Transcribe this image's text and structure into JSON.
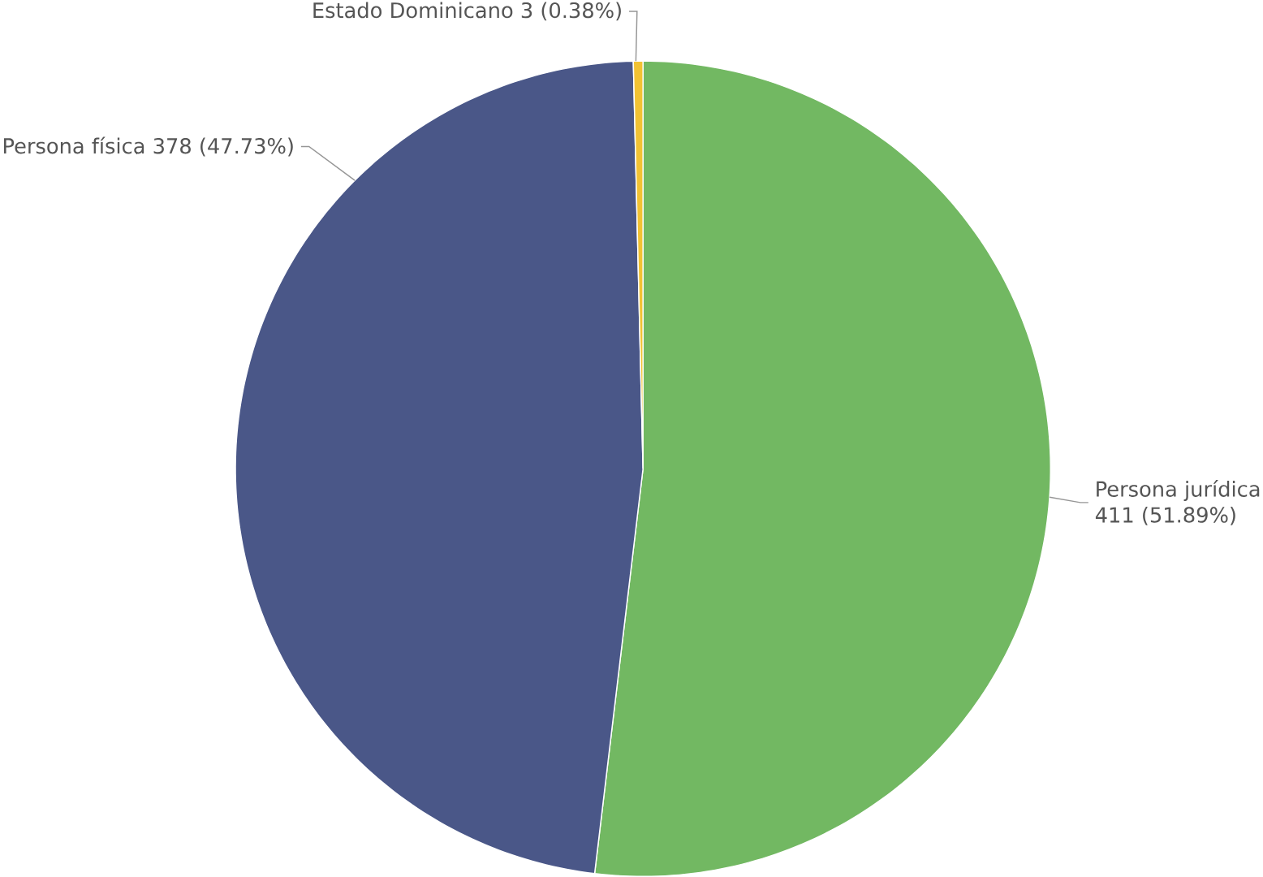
{
  "chart_data": {
    "type": "pie",
    "categories": [
      "Persona jurídica",
      "Persona física",
      "Estado Dominicano"
    ],
    "values": [
      411,
      378,
      3
    ],
    "colors": [
      "#72b862",
      "#4a5788",
      "#f2c233"
    ],
    "value_labels": [
      "411 (51.89%)",
      "378 (47.73%)",
      "3 (0.38%)"
    ]
  }
}
